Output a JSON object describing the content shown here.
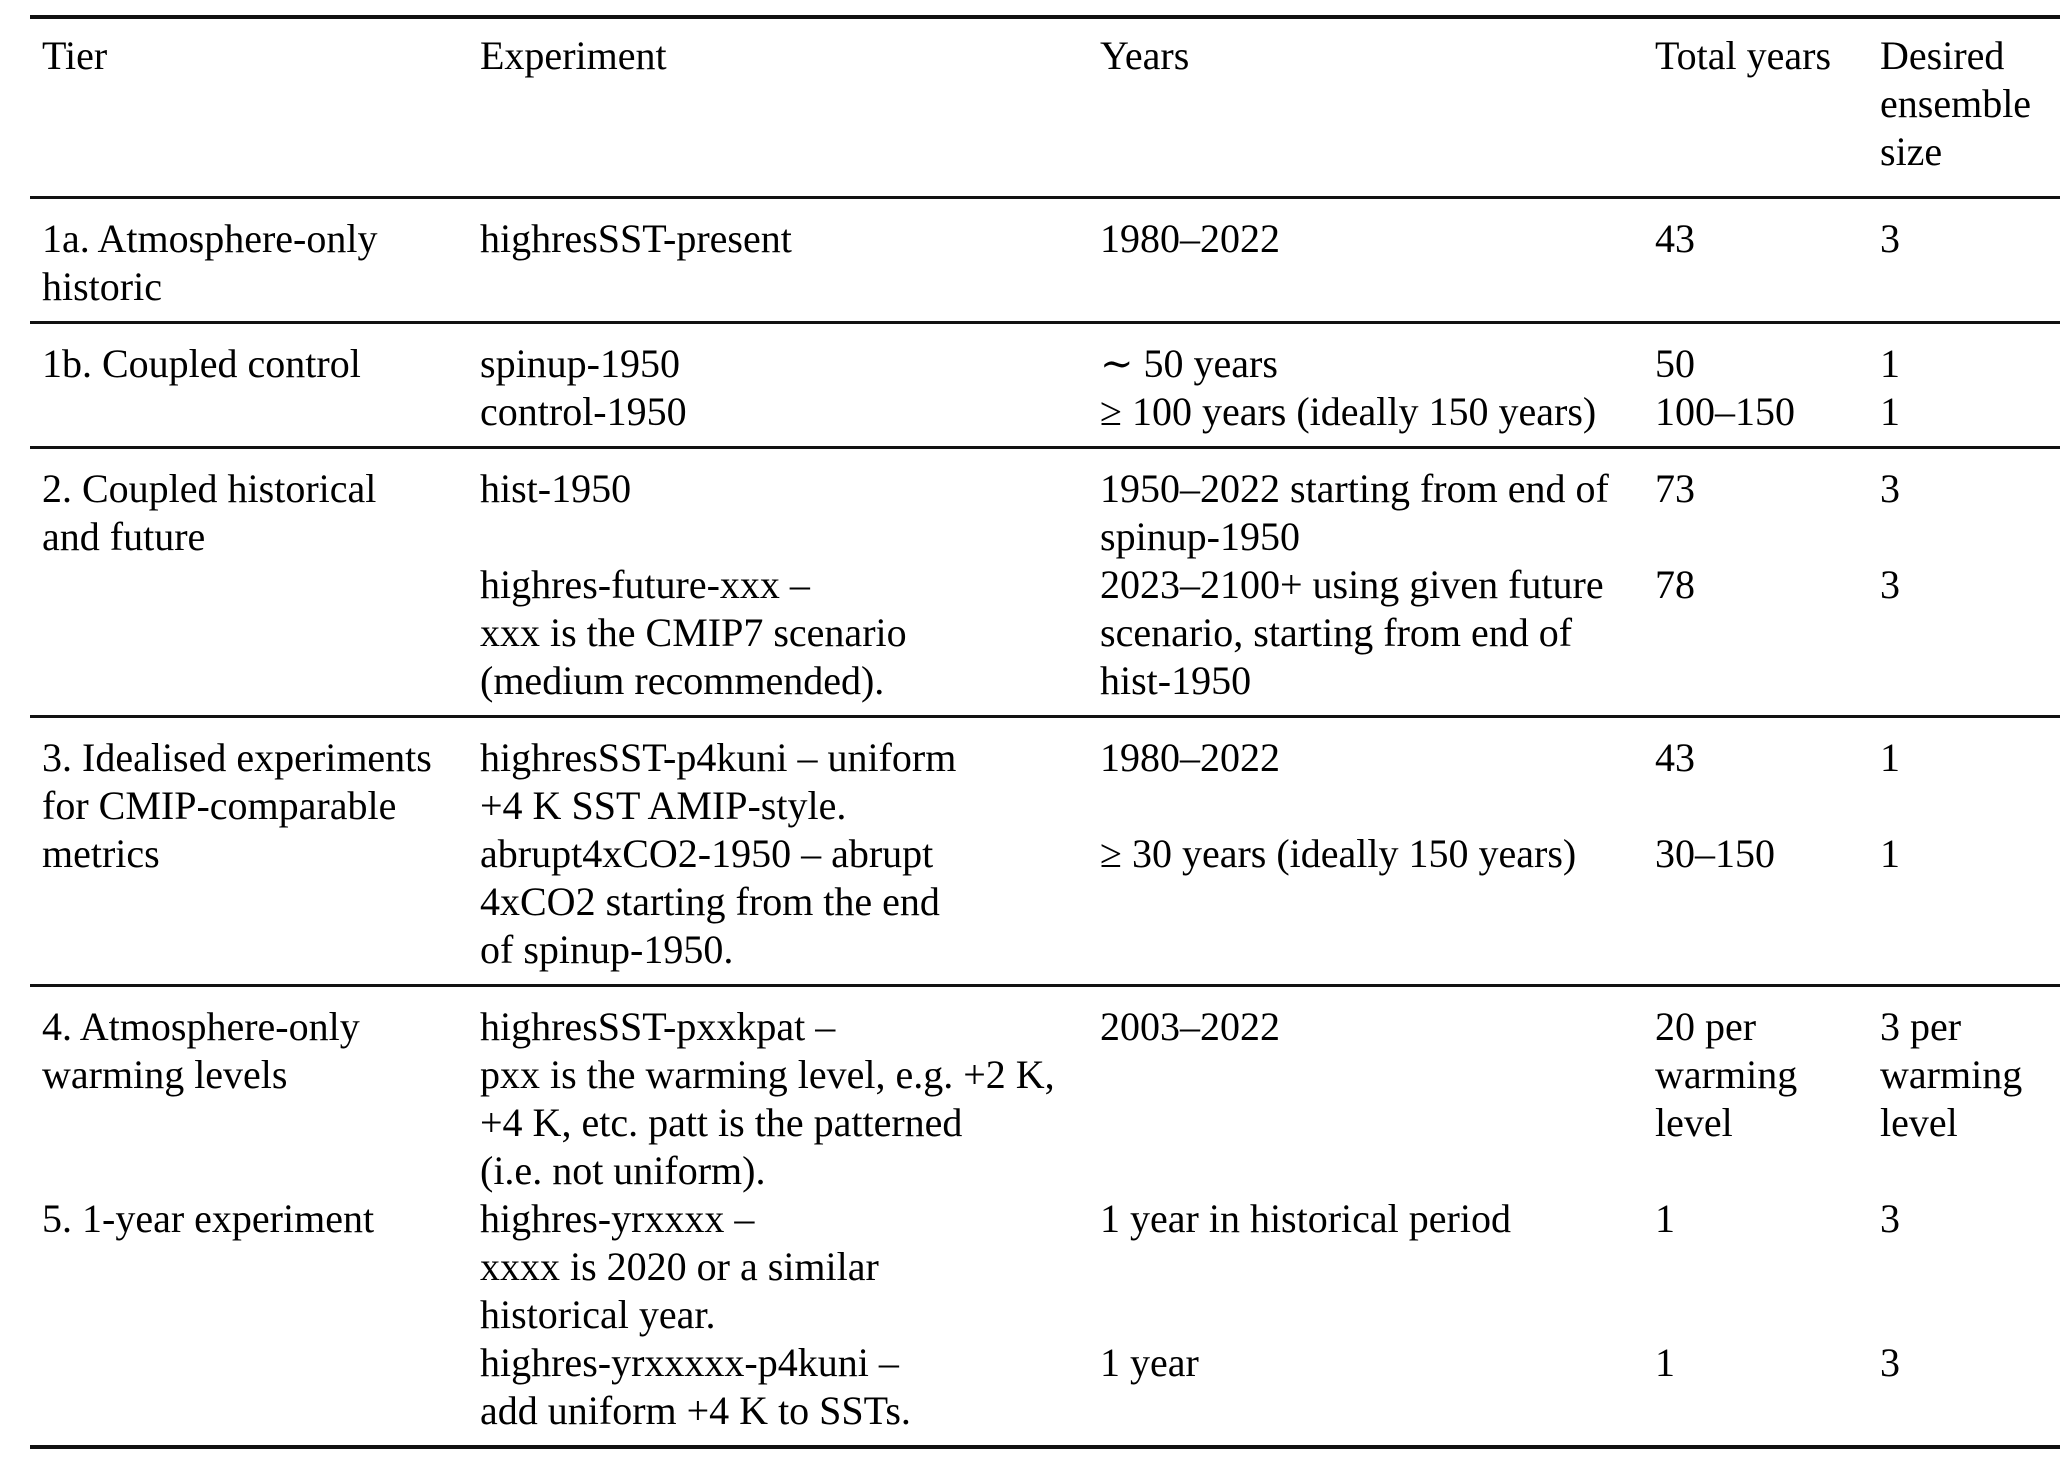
{
  "table": {
    "header": {
      "tier": "Tier",
      "experiment": "Experiment",
      "years": "Years",
      "total_years": "Total years",
      "ensemble": "Desired\nensemble\nsize"
    },
    "sections": [
      {
        "rows": [
          {
            "tier": "1a. Atmosphere-only\nhistoric",
            "experiments": [
              {
                "name": "highresSST-present",
                "years": "1980–2022",
                "total": "43",
                "ensemble": "3"
              }
            ]
          }
        ]
      },
      {
        "rows": [
          {
            "tier": "1b. Coupled control",
            "experiments": [
              {
                "name": "spinup-1950",
                "years": "∼ 50 years",
                "total": "50",
                "ensemble": "1"
              },
              {
                "name": "control-1950",
                "years": "≥ 100 years (ideally 150 years)",
                "total": "100–150",
                "ensemble": "1"
              }
            ]
          }
        ]
      },
      {
        "rows": [
          {
            "tier": "2. Coupled historical\nand future",
            "experiments": [
              {
                "name": "hist-1950",
                "years": "1950–2022 starting from end of\nspinup-1950",
                "total": "73",
                "ensemble": "3"
              },
              {
                "name": "highres-future-xxx –\nxxx is the CMIP7 scenario\n(medium recommended).",
                "years": "2023–2100+ using given future\nscenario, starting from end of\nhist-1950",
                "total": "78",
                "ensemble": "3"
              }
            ]
          }
        ]
      },
      {
        "rows": [
          {
            "tier": "3. Idealised experiments\nfor CMIP-comparable\nmetrics",
            "experiments": [
              {
                "name": "highresSST-p4kuni – uniform\n+4 K SST AMIP-style.",
                "years": "1980–2022",
                "total": "43",
                "ensemble": "1"
              },
              {
                "name": "abrupt4xCO2-1950 – abrupt\n4xCO2 starting from the end\nof spinup-1950.",
                "years": "≥ 30 years (ideally 150 years)",
                "total": "30–150",
                "ensemble": "1"
              }
            ]
          }
        ]
      },
      {
        "rows": [
          {
            "tier": "4. Atmosphere-only\nwarming levels",
            "experiments": [
              {
                "name": "highresSST-pxxkpat –\npxx is the warming level, e.g. +2 K,\n+4 K, etc. patt is the patterned\n(i.e. not uniform).",
                "years": "2003–2022",
                "total": "20 per\nwarming\nlevel",
                "ensemble": "3 per\nwarming\nlevel"
              }
            ]
          },
          {
            "tier": "5. 1-year experiment",
            "experiments": [
              {
                "name": "highres-yrxxxx –\nxxxx is 2020 or a similar\nhistorical year.",
                "years": "1 year in historical period",
                "total": "1",
                "ensemble": "3"
              },
              {
                "name": "highres-yrxxxxx-p4kuni –\nadd uniform +4 K to SSTs.",
                "years": "1 year",
                "total": "1",
                "ensemble": "3"
              }
            ]
          }
        ]
      }
    ]
  }
}
